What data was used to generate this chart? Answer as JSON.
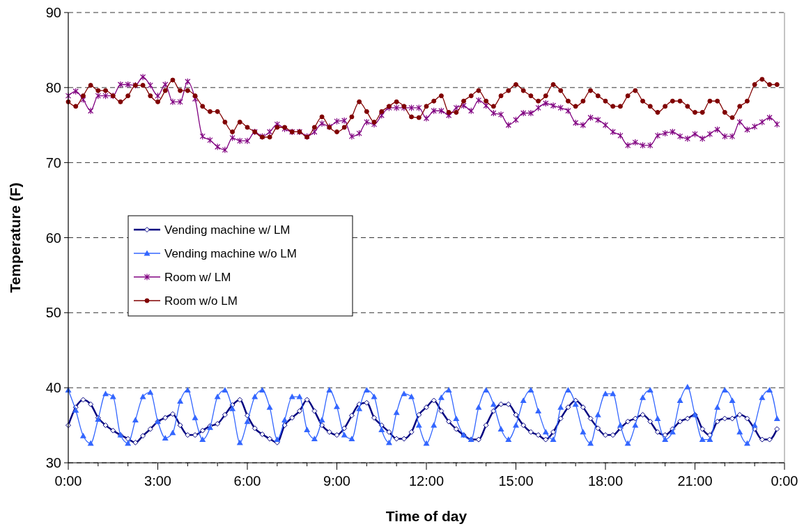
{
  "chart_data": {
    "type": "line",
    "xlabel": "Time of day",
    "ylabel": "Temperature (F)",
    "x": [
      0,
      0.25,
      0.5,
      0.75,
      1,
      1.25,
      1.5,
      1.75,
      2,
      2.25,
      2.5,
      2.75,
      3,
      3.25,
      3.5,
      3.75,
      4,
      4.25,
      4.5,
      4.75,
      5,
      5.25,
      5.5,
      5.75,
      6,
      6.25,
      6.5,
      6.75,
      7,
      7.25,
      7.5,
      7.75,
      8,
      8.25,
      8.5,
      8.75,
      9,
      9.25,
      9.5,
      9.75,
      10,
      10.25,
      10.5,
      10.75,
      11,
      11.25,
      11.5,
      11.75,
      12,
      12.25,
      12.5,
      12.75,
      13,
      13.25,
      13.5,
      13.75,
      14,
      14.25,
      14.5,
      14.75,
      15,
      15.25,
      15.5,
      15.75,
      16,
      16.25,
      16.5,
      16.75,
      17,
      17.25,
      17.5,
      17.75,
      18,
      18.25,
      18.5,
      18.75,
      19,
      19.25,
      19.5,
      19.75,
      20,
      20.25,
      20.5,
      20.75,
      21,
      21.25,
      21.5,
      21.75,
      22,
      22.25,
      22.5,
      22.75,
      23,
      23.25,
      23.5,
      23.75
    ],
    "xlim": [
      0,
      24
    ],
    "xticks": [
      {
        "value": 0,
        "label": "0:00"
      },
      {
        "value": 1,
        "label": null
      },
      {
        "value": 2,
        "label": null
      },
      {
        "value": 3,
        "label": "3:00"
      },
      {
        "value": 4,
        "label": null
      },
      {
        "value": 5,
        "label": null
      },
      {
        "value": 6,
        "label": "6:00"
      },
      {
        "value": 7,
        "label": null
      },
      {
        "value": 8,
        "label": null
      },
      {
        "value": 9,
        "label": "9:00"
      },
      {
        "value": 10,
        "label": null
      },
      {
        "value": 11,
        "label": null
      },
      {
        "value": 12,
        "label": "12:00"
      },
      {
        "value": 13,
        "label": null
      },
      {
        "value": 14,
        "label": null
      },
      {
        "value": 15,
        "label": "15:00"
      },
      {
        "value": 16,
        "label": null
      },
      {
        "value": 17,
        "label": null
      },
      {
        "value": 18,
        "label": "18:00"
      },
      {
        "value": 19,
        "label": null
      },
      {
        "value": 20,
        "label": null
      },
      {
        "value": 21,
        "label": "21:00"
      },
      {
        "value": 22,
        "label": null
      },
      {
        "value": 23,
        "label": null
      },
      {
        "value": 24,
        "label": "0:00"
      }
    ],
    "ylim": [
      30,
      90
    ],
    "yticks": [
      30,
      40,
      50,
      60,
      70,
      80,
      90
    ],
    "grid": "y",
    "legend": "left",
    "line_style": "solid",
    "series": [
      {
        "name": "Vending machine w/ LM",
        "color": "#000080",
        "marker": "diamond",
        "values": [
          35.0,
          37.4,
          38.4,
          37.8,
          36.0,
          35.0,
          34.3,
          33.7,
          33.2,
          32.7,
          33.6,
          34.5,
          35.5,
          36.0,
          36.5,
          35.0,
          33.7,
          33.7,
          34.3,
          34.9,
          35.2,
          36.4,
          37.7,
          38.4,
          36.3,
          34.6,
          33.8,
          33.2,
          32.7,
          35.0,
          36.0,
          36.9,
          38.4,
          36.9,
          35.0,
          34.1,
          33.7,
          34.6,
          36.3,
          37.8,
          38.0,
          36.0,
          35.0,
          34.1,
          33.2,
          33.2,
          34.1,
          36.4,
          37.4,
          38.3,
          36.9,
          35.5,
          34.5,
          33.7,
          33.1,
          33.1,
          35.0,
          36.9,
          37.8,
          37.8,
          36.4,
          35.0,
          34.1,
          33.7,
          33.1,
          34.1,
          35.9,
          37.4,
          38.3,
          37.4,
          35.9,
          34.6,
          33.7,
          33.7,
          34.6,
          35.5,
          35.9,
          36.4,
          35.5,
          34.1,
          33.7,
          34.5,
          35.5,
          35.9,
          36.4,
          34.5,
          33.7,
          35.5,
          35.9,
          35.9,
          36.4,
          35.9,
          34.5,
          33.1,
          33.1,
          34.5
        ]
      },
      {
        "name": "Vending machine w/o LM",
        "color": "#3366ff",
        "marker": "triangle",
        "values": [
          39.7,
          37.0,
          33.6,
          32.6,
          35.8,
          39.2,
          38.8,
          33.7,
          32.6,
          35.7,
          38.8,
          39.4,
          35.5,
          33.3,
          34.0,
          38.2,
          39.7,
          36.0,
          33.1,
          34.7,
          38.8,
          39.7,
          37.2,
          32.7,
          35.5,
          38.8,
          39.7,
          37.4,
          33.1,
          35.7,
          38.8,
          38.8,
          34.4,
          33.2,
          35.7,
          39.7,
          37.5,
          33.7,
          33.2,
          37.2,
          39.7,
          38.8,
          34.4,
          32.7,
          36.7,
          39.2,
          38.8,
          35.0,
          32.6,
          35.0,
          38.7,
          39.7,
          35.9,
          33.7,
          33.1,
          37.4,
          39.7,
          37.8,
          34.5,
          33.1,
          35.0,
          38.3,
          39.7,
          36.9,
          34.1,
          33.1,
          37.4,
          39.7,
          37.8,
          34.1,
          32.6,
          36.4,
          39.2,
          39.2,
          35.0,
          32.6,
          35.0,
          38.7,
          39.7,
          35.9,
          33.1,
          34.1,
          38.3,
          40.1,
          36.4,
          33.1,
          33.1,
          37.4,
          39.7,
          38.3,
          34.1,
          32.6,
          35.0,
          38.7,
          39.7,
          35.9
        ]
      },
      {
        "name": "Room w/ LM",
        "color": "#800080",
        "marker": "cross",
        "values": [
          78.9,
          79.5,
          78.4,
          76.9,
          78.9,
          78.9,
          78.9,
          80.4,
          80.4,
          80.3,
          81.4,
          80.3,
          78.9,
          80.4,
          78.1,
          78.1,
          80.8,
          78.5,
          73.5,
          73.0,
          72.1,
          71.7,
          73.3,
          72.9,
          72.9,
          74.1,
          73.5,
          74.1,
          75.1,
          74.5,
          74.1,
          74.1,
          73.5,
          74.1,
          75.2,
          74.8,
          75.5,
          75.6,
          73.5,
          73.9,
          75.4,
          75.1,
          76.3,
          77.3,
          77.3,
          77.3,
          77.3,
          77.3,
          75.9,
          76.9,
          76.9,
          76.3,
          77.3,
          77.6,
          76.9,
          78.3,
          77.6,
          76.6,
          76.4,
          75.0,
          75.7,
          76.6,
          76.6,
          77.3,
          77.9,
          77.6,
          77.3,
          76.9,
          75.3,
          75.0,
          76.0,
          75.7,
          75.0,
          74.1,
          73.6,
          72.3,
          72.7,
          72.3,
          72.3,
          73.6,
          73.9,
          74.1,
          73.5,
          73.2,
          73.8,
          73.2,
          73.8,
          74.4,
          73.5,
          73.5,
          75.4,
          74.4,
          74.8,
          75.4,
          76.0,
          75.1
        ]
      },
      {
        "name": "Room w/o LM",
        "color": "#800000",
        "marker": "circle",
        "values": [
          78.1,
          77.5,
          78.9,
          80.3,
          79.6,
          79.6,
          78.9,
          78.1,
          78.9,
          80.3,
          80.3,
          78.9,
          78.1,
          79.6,
          81.0,
          79.6,
          79.6,
          78.9,
          77.5,
          76.8,
          76.8,
          75.4,
          74.1,
          75.4,
          74.7,
          74.1,
          73.4,
          73.4,
          74.7,
          74.7,
          74.1,
          74.1,
          73.4,
          74.7,
          76.1,
          74.7,
          74.1,
          74.7,
          76.1,
          78.1,
          76.8,
          75.4,
          76.8,
          77.5,
          78.1,
          77.5,
          76.1,
          76.0,
          77.5,
          78.2,
          78.9,
          76.7,
          76.7,
          78.2,
          78.9,
          79.6,
          78.2,
          77.5,
          78.9,
          79.6,
          80.4,
          79.6,
          78.9,
          78.2,
          78.9,
          80.4,
          79.6,
          78.2,
          77.5,
          78.2,
          79.6,
          78.9,
          78.2,
          77.5,
          77.5,
          78.9,
          79.6,
          78.2,
          77.5,
          76.7,
          77.5,
          78.2,
          78.2,
          77.5,
          76.7,
          76.7,
          78.2,
          78.2,
          76.7,
          76.0,
          77.5,
          78.2,
          80.4,
          81.1,
          80.4,
          80.4
        ]
      }
    ]
  }
}
